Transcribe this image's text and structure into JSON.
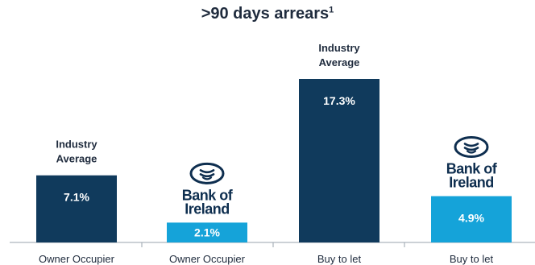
{
  "chart_data": {
    "type": "bar",
    "title": ">90 days arrears",
    "title_footnote": "1",
    "xlabel": "",
    "ylabel": "",
    "ylim": [
      0,
      20
    ],
    "grid": false,
    "legend": "none",
    "categories": [
      "Owner Occupier",
      "Owner Occupier",
      "Buy to let",
      "Buy to let"
    ],
    "values": [
      7.1,
      2.1,
      17.3,
      4.9
    ],
    "data_labels": [
      "7.1%",
      "2.1%",
      "17.3%",
      "4.9%"
    ],
    "bars": [
      {
        "group": "Industry Average",
        "color": "#103a5c",
        "label_lines": [
          "Industry",
          "Average"
        ]
      },
      {
        "group": "Bank of Ireland",
        "color": "#15a3d9",
        "logo_lines": [
          "Bank of",
          "Ireland"
        ]
      },
      {
        "group": "Industry Average",
        "color": "#103a5c",
        "label_lines": [
          "Industry",
          "Average"
        ]
      },
      {
        "group": "Bank of Ireland",
        "color": "#15a3d9",
        "logo_lines": [
          "Bank of",
          "Ireland"
        ]
      }
    ]
  },
  "colors": {
    "industry": "#103a5c",
    "bank": "#15a3d9",
    "axis": "#9aa3ad",
    "text": "#1f2b3d",
    "logo": "#0e2e4f"
  }
}
